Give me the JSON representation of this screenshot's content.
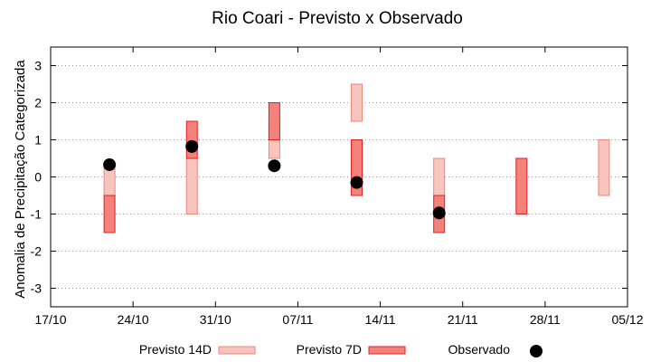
{
  "chart_data": {
    "type": "floating-bar",
    "title": "Rio Coari - Previsto x Observado",
    "xlabel": "",
    "ylabel": "Anomalia de Precipitação Categorizada",
    "x_ticks": [
      "17/10",
      "24/10",
      "31/10",
      "07/11",
      "14/11",
      "21/11",
      "28/11",
      "05/12"
    ],
    "xlim": [
      "17/10",
      "05/12"
    ],
    "ylim": [
      -3.5,
      3.5
    ],
    "y_ticks": [
      -3,
      -2,
      -1,
      0,
      1,
      2,
      3
    ],
    "grid": "horizontal dotted",
    "legend_position": "bottom",
    "series": [
      {
        "name": "Previsto 14D",
        "kind": "range",
        "fill": "#f7c5bd",
        "stroke": "#e8877b",
        "ranges": [
          {
            "x": "22/10",
            "low": -0.5,
            "high": 0.25
          },
          {
            "x": "29/10",
            "low": -1.0,
            "high": 0.5
          },
          {
            "x": "05/11",
            "low": 0.5,
            "high": 1.5
          },
          {
            "x": "12/11",
            "low": 1.5,
            "high": 2.5
          },
          {
            "x": "19/11",
            "low": -0.5,
            "high": 0.5
          },
          {
            "x": "03/12",
            "low": -0.5,
            "high": 1.0
          }
        ]
      },
      {
        "name": "Previsto 7D",
        "kind": "range",
        "fill": "#f4817a",
        "stroke": "#e02020",
        "ranges": [
          {
            "x": "22/10",
            "low": -1.5,
            "high": -0.5
          },
          {
            "x": "29/10",
            "low": 0.5,
            "high": 1.5
          },
          {
            "x": "05/11",
            "low": 1.0,
            "high": 2.0
          },
          {
            "x": "12/11",
            "low": -0.5,
            "high": 1.0
          },
          {
            "x": "19/11",
            "low": -1.5,
            "high": -0.5
          },
          {
            "x": "26/11",
            "low": -1.0,
            "high": 0.5
          }
        ]
      },
      {
        "name": "Observado",
        "kind": "point",
        "color": "#000000",
        "points": [
          {
            "x": "22/10",
            "y": 0.33
          },
          {
            "x": "29/10",
            "y": 0.82
          },
          {
            "x": "05/11",
            "y": 0.3
          },
          {
            "x": "12/11",
            "y": -0.15
          },
          {
            "x": "19/11",
            "y": -0.97
          }
        ]
      }
    ]
  }
}
